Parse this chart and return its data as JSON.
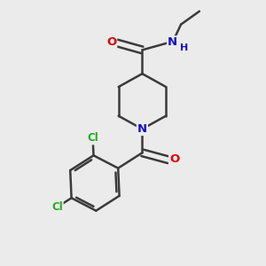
{
  "background_color": "#ebebeb",
  "bond_color": "#3a3a3a",
  "atom_colors": {
    "O": "#e00000",
    "N": "#1010cc",
    "Cl": "#22aa22",
    "H": "#1010cc"
  },
  "figsize": [
    3.0,
    3.0
  ],
  "dpi": 100
}
